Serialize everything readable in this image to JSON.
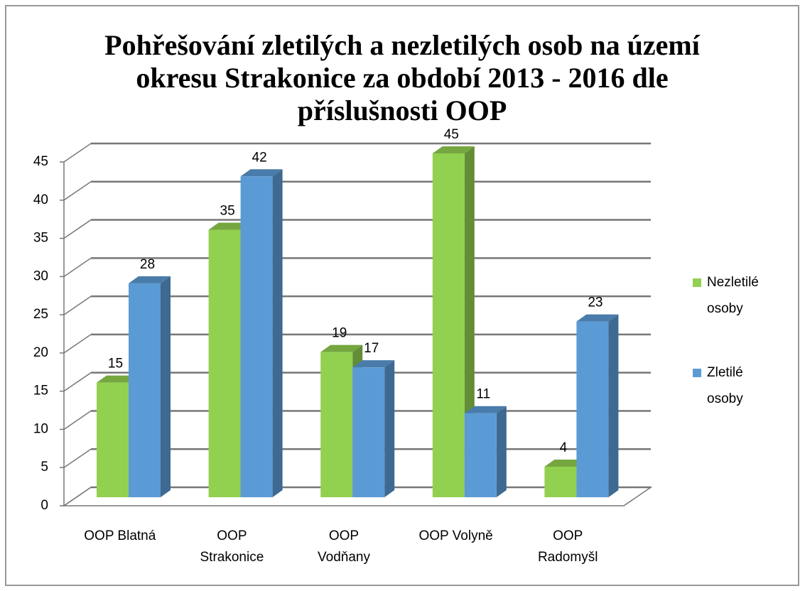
{
  "chart_data": {
    "type": "bar3d",
    "title": "Pohřešování zletilých a nezletilých osob na území okresu Strakonice za období 2013 - 2016 dle příslušnosti OOP",
    "categories": [
      "OOP Blatná",
      "OOP Strakonice",
      "OOP Vodňany",
      "OOP Volyně",
      "OOP Radomyšl"
    ],
    "series": [
      {
        "name": "Nezletilé osoby",
        "color": "#92d050",
        "values": [
          15,
          35,
          19,
          45,
          4
        ]
      },
      {
        "name": "Zletilé osoby",
        "color": "#5b9bd5",
        "values": [
          28,
          42,
          17,
          11,
          23
        ]
      }
    ],
    "ylim": [
      0,
      45
    ],
    "yticks": [
      0,
      5,
      10,
      15,
      20,
      25,
      30,
      35,
      40,
      45
    ],
    "grid": true,
    "legend": "right"
  }
}
